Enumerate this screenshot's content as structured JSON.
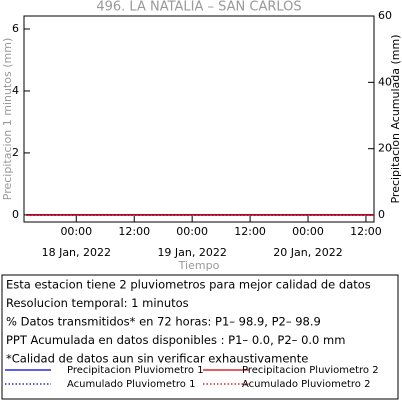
{
  "chart_data": {
    "type": "line",
    "title": "496. LA NATALIA – SAN CARLOS",
    "ylabel": "Precipitacion 1 minutos (mm)",
    "y2label": "Precipitacion Acumulada (mm)",
    "xlabel": "Tiempo",
    "x": [
      "2022-01-17T13:40",
      "2022-01-20T13:40"
    ],
    "xlim": [
      "2022-01-17T13:10",
      "2022-01-20T13:40"
    ],
    "xticks": [
      {
        "value": "2022-01-18T00:00",
        "label": "00:00"
      },
      {
        "value": "2022-01-18T12:00",
        "label": "12:00"
      },
      {
        "value": "2022-01-19T00:00",
        "label": "00:00"
      },
      {
        "value": "2022-01-19T12:00",
        "label": "12:00"
      },
      {
        "value": "2022-01-20T00:00",
        "label": "00:00"
      },
      {
        "value": "2022-01-20T12:00",
        "label": "12:00"
      }
    ],
    "date_labels": [
      {
        "value": "2022-01-18T00:00",
        "label": "18 Jan, 2022"
      },
      {
        "value": "2022-01-19T00:00",
        "label": "19 Jan, 2022"
      },
      {
        "value": "2022-01-20T00:00",
        "label": "20 Jan, 2022"
      }
    ],
    "ylim": [
      -0.23,
      6.42
    ],
    "yticks": [
      0,
      2,
      4,
      6
    ],
    "y2lim": [
      -2.1,
      60
    ],
    "y2ticks": [
      0,
      20,
      40,
      60
    ],
    "series": [
      {
        "name": "Precipitacion Pluviometro 1",
        "color": "#0000cc",
        "style": "solid",
        "values": [
          0,
          0
        ]
      },
      {
        "name": "Precipitacion Pluviometro 2",
        "color": "#cc0000",
        "style": "solid",
        "values": [
          0,
          0
        ]
      },
      {
        "name": "Acumulado Pluviometro 1",
        "color": "#0000cc",
        "style": "dotted",
        "axis": "y2",
        "values": [
          0,
          0
        ]
      },
      {
        "name": "Acumulado Pluviometro 2",
        "color": "#cc0000",
        "style": "dotted",
        "axis": "y2",
        "values": [
          0,
          0
        ]
      }
    ],
    "info": [
      "Esta estacion tiene 2 pluviometros para mejor calidad de datos",
      "Resolucion temporal: 1 minutos",
      "% Datos transmitidos* en 72 horas: P1– 98.9, P2– 98.9",
      "PPT Acumulada en datos disponibles : P1–  0.0, P2–  0.0 mm",
      "*Calidad de datos aun sin verificar exhaustivamente"
    ]
  }
}
